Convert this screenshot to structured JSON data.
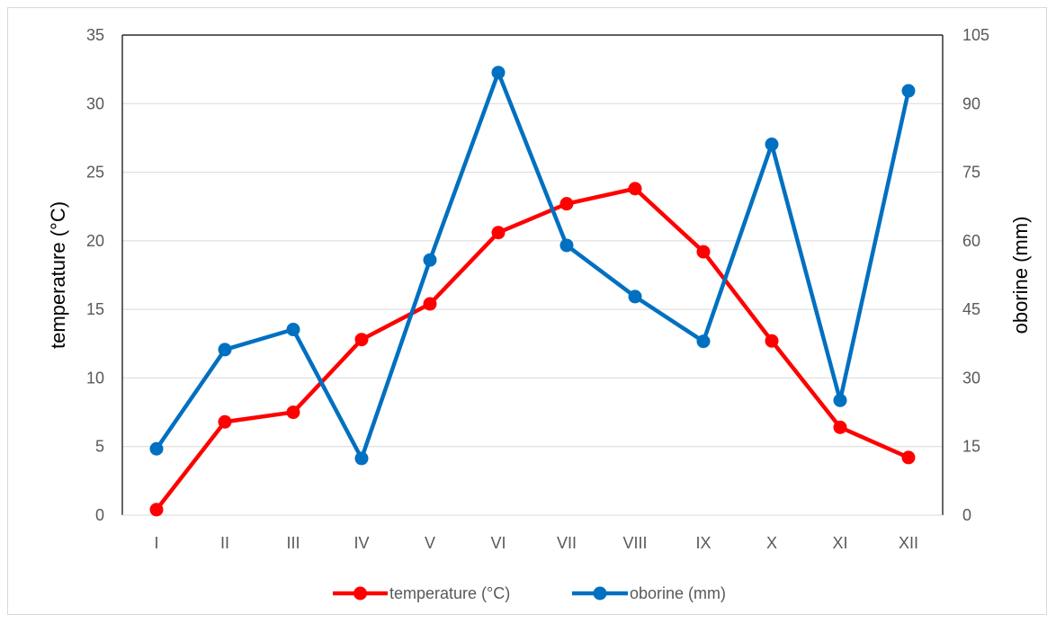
{
  "chart_data": {
    "type": "line",
    "categories": [
      "I",
      "II",
      "III",
      "IV",
      "V",
      "VI",
      "VII",
      "VIII",
      "IX",
      "X",
      "XI",
      "XII"
    ],
    "series": [
      {
        "name": "temperature (°C)",
        "axis": "left",
        "color": "#ff0000",
        "values": [
          0.4,
          6.8,
          7.5,
          12.8,
          15.4,
          20.6,
          22.7,
          23.8,
          19.2,
          12.7,
          6.4,
          4.2
        ]
      },
      {
        "name": "oborine (mm)",
        "axis": "right",
        "color": "#0070c0",
        "values": [
          14.5,
          36.2,
          40.6,
          12.4,
          55.8,
          96.8,
          59.0,
          47.8,
          38.0,
          81.1,
          25.1,
          92.8
        ]
      }
    ],
    "ylabel_left": "temperature (°C)",
    "ylabel_right": "oborine (mm)",
    "ylim_left": [
      0,
      35
    ],
    "yticks_left": [
      "0",
      "5",
      "10",
      "15",
      "20",
      "25",
      "30",
      "35"
    ],
    "ylim_right": [
      0,
      105
    ],
    "yticks_right": [
      "0",
      "15",
      "30",
      "45",
      "60",
      "75",
      "90",
      "105"
    ],
    "grid": true,
    "legend": "bottom"
  }
}
